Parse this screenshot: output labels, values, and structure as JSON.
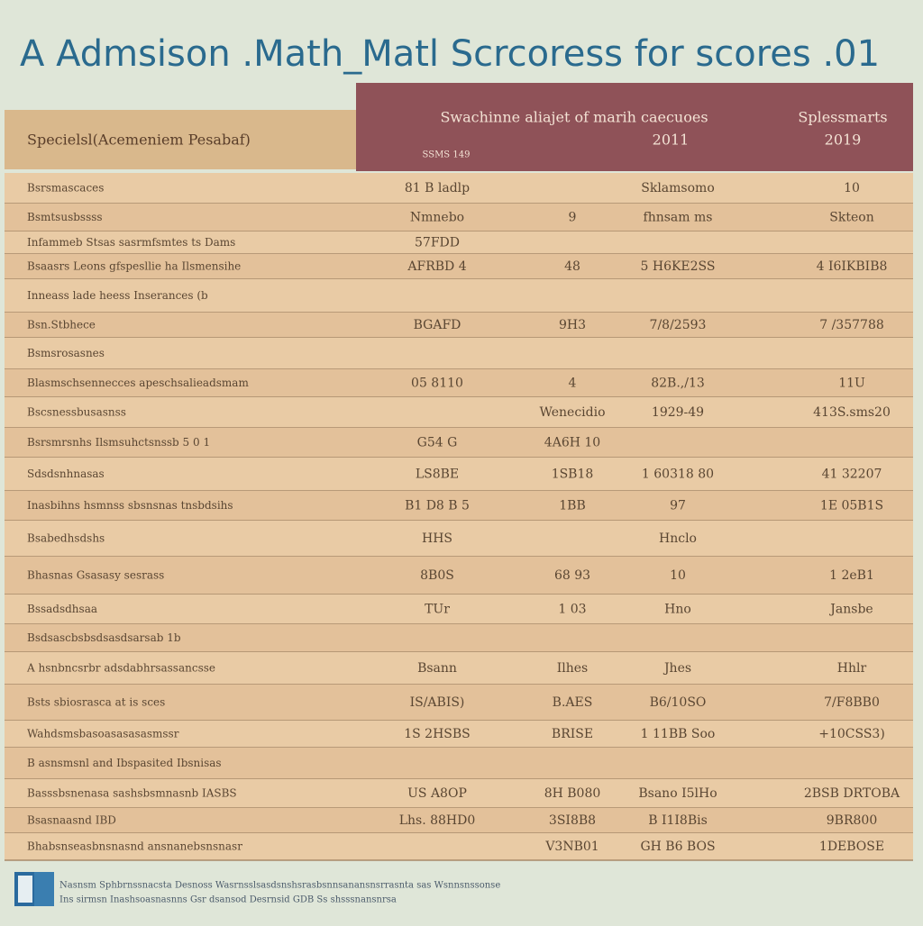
{
  "header": {
    "title": "A Admsison .Math_Matl Scrcoress for scores .01"
  },
  "table": {
    "head": {
      "left": "Specielsl(Acemeniem Pesabaf)",
      "middle": "Swachinne aliajet of marih caecuoes",
      "middle_year": "2011",
      "middle_note": "SSMS 149",
      "right": "Splessmarts",
      "right_year": "2019"
    },
    "rows": [
      [
        "Bsrsmascaces",
        "81 B ladlp",
        null,
        "Sklamsomo",
        "10"
      ],
      [
        "Bsmtsusbssss",
        "Nmnebo",
        "9",
        "fhnsam ms",
        "Skteon"
      ],
      [
        "Infammeb Stsas sasrmfsmtes ts Dams",
        "57FDD",
        null,
        null,
        null
      ],
      [
        "Bsaasrs Leons gfspesllie ha Ilsmensihe",
        "AFRBD 4",
        "48",
        "5 H6KE2SS",
        "4 I6IKBIB8"
      ],
      [
        "Inneass lade heess Inserances (b",
        null,
        null,
        null,
        null
      ],
      [
        "Bsn.Stbhece",
        "BGAFD",
        "9H3",
        "7/8/2593",
        "7 /357788"
      ],
      [
        "Bsmsrosasnes",
        null,
        null,
        null,
        null
      ],
      [
        "Blasmschsennecces apeschsalieadsmam",
        "05 8110",
        "4",
        "82B.,/13",
        "11U"
      ],
      [
        "Bscsnessbusasnss",
        null,
        "Wenecidio",
        "1929-49",
        "413S.sms20"
      ],
      [
        "Bsrsmrsnhs Ilsmsuhctsnssb 5 0 1",
        "G54 G",
        "4A6H 10",
        null,
        null
      ],
      [
        "Sdsdsnhnasas",
        "LS8BE",
        "1SB18",
        "1 60318 80",
        "41 32207"
      ],
      [
        "Inasbihns hsmnss sbsnsnas tnsbdsihs",
        "B1 D8 B 5",
        "1BB",
        "97",
        "1E 05B1S"
      ],
      [
        "Bsabedhsdshs",
        "HHS",
        null,
        "Hnclo",
        null
      ],
      [
        "Bhasnas Gsasasy sesrass",
        "8B0S",
        "68 93",
        "10",
        "1 2eB1"
      ],
      [
        "Bssadsdhsaa",
        "TUr",
        "1 03",
        "Hno",
        "Jansbe"
      ],
      [
        "Bsdsascbsbsdsasdsarsab 1b",
        null,
        null,
        null,
        null
      ],
      [
        "A hsnbncsrbr adsdabhrsassancsse",
        "Bsann",
        "Ilhes",
        "Jhes",
        "Hhlr"
      ],
      [
        "Bsts sbiosrasca at is sces",
        "IS/ABIS)",
        "B.AES",
        "B6/10SO",
        "7/F8BB0"
      ],
      [
        "Wahdsmsbasoasasasasmssr",
        "1S 2HSBS",
        "BRISE",
        "1 11BB Soo",
        "+10CSS3)"
      ],
      [
        "B asnsmsnl and Ibspasited Ibsnisas",
        null,
        null,
        null,
        null
      ],
      [
        "Basssbsnenasa sashsbsmnasnb IASBS",
        "US A8OP",
        "8H B080",
        "Bsano I5lHo",
        "2BSB DRTOBA"
      ],
      [
        "Bsasnaasnd IBD",
        "Lhs. 88HD0",
        "3SI8B8",
        "B I1I8Bis",
        "9BR800"
      ],
      [
        "Bhabsnseasbnsnasnd ansnanebsnsnasr",
        null,
        "V3NB01",
        "GH B6 BOS",
        "1DEBOSE"
      ]
    ]
  },
  "footer": {
    "lines": [
      "Nasnsm Sphbrnssnacsta Desnoss Wasrnsslsasdsnshsrasbsnnsanansnsrrasnta sas Wsnnsnssonse",
      "Ins sirmsn Inashsoasnasnns Gsr dsansod Desrnsid GDB Ss shsssnansnrsa"
    ]
  }
}
